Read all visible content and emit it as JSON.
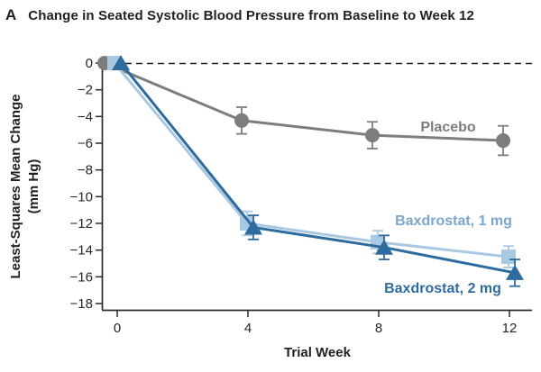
{
  "figure": {
    "panel_label": "A",
    "title": "Change in Seated Systolic Blood Pressure from Baseline to Week 12",
    "xlabel": "Trial Week",
    "ylabel_line1": "Least-Squares Mean Change",
    "ylabel_line2": "(mm Hg)"
  },
  "chart_data": {
    "type": "line",
    "title": "Change in Seated Systolic Blood Pressure from Baseline to Week 12",
    "xlabel": "Trial Week",
    "ylabel": "Least-Squares Mean Change (mm Hg)",
    "x": [
      0,
      4,
      8,
      12
    ],
    "xticks": [
      0,
      4,
      8,
      12
    ],
    "yticks": [
      0,
      -2,
      -4,
      -6,
      -8,
      -10,
      -12,
      -14,
      -16,
      -18
    ],
    "xlim": [
      0,
      12
    ],
    "ylim": [
      -18,
      0
    ],
    "grid": false,
    "legend_position": "inline-annotations",
    "zero_reference_line": {
      "style": "dashed",
      "color": "#231f20"
    },
    "axis_color": "#2b2b2b",
    "tick_label_color": "#262626",
    "series": [
      {
        "name": "placebo",
        "label": "Placebo",
        "marker": "circle",
        "color": "#7d7d7d",
        "label_color": "#7d7d7d",
        "values": [
          0,
          -4.3,
          -5.4,
          -5.8
        ],
        "errors": [
          0,
          1.0,
          1.0,
          1.1
        ]
      },
      {
        "name": "baxdrostat-1mg",
        "label": "Baxdrostat, 1 mg",
        "marker": "square",
        "color": "#a9c8e1",
        "label_color": "#7ba7cc",
        "values": [
          0,
          -12.0,
          -13.4,
          -14.5
        ],
        "errors": [
          0,
          0.9,
          0.85,
          0.8
        ]
      },
      {
        "name": "baxdrostat-2mg",
        "label": "Baxdrostat, 2 mg",
        "marker": "triangle",
        "color": "#2e6b9e",
        "label_color": "#2e6b9e",
        "values": [
          0,
          -12.3,
          -13.8,
          -15.7
        ],
        "errors": [
          0,
          0.9,
          0.9,
          1.0
        ]
      }
    ]
  }
}
